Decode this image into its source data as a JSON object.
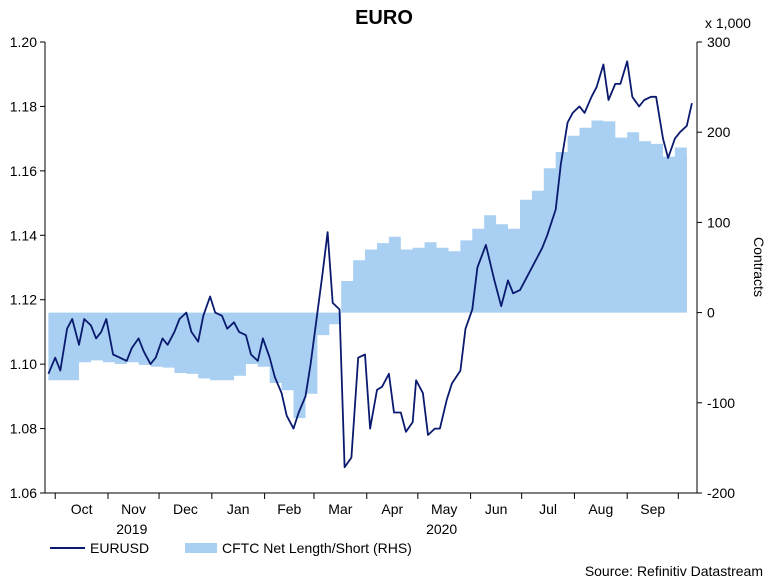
{
  "chart_data": {
    "type": "line",
    "title": "EURO",
    "source": "Source: Refinitiv Datastream",
    "left_axis": {
      "ylim": [
        1.06,
        1.2
      ],
      "ticks": [
        "1.20",
        "1.18",
        "1.16",
        "1.14",
        "1.12",
        "1.10",
        "1.08",
        "1.06"
      ]
    },
    "right_axis": {
      "multiplier": "x 1,000",
      "label": "Contracts",
      "ylim": [
        -200,
        300
      ],
      "ticks": [
        "300",
        "200",
        "100",
        "0",
        "-100",
        "-200"
      ]
    },
    "x_months": [
      "Oct",
      "Nov",
      "Dec",
      "Jan",
      "Feb",
      "Mar",
      "Apr",
      "May",
      "Jun",
      "Jul",
      "Aug",
      "Sep"
    ],
    "x_years": [
      "2019",
      "2020"
    ],
    "legend": [
      "EURUSD",
      "CFTC Net Length/Short (RHS)"
    ],
    "colors": {
      "line": "#0a1a6e",
      "area": "#a9cff2",
      "axis": "#000000"
    },
    "series": [
      {
        "name": "EURUSD",
        "axis": "left",
        "points": [
          [
            "2019-09-27",
            1.097
          ],
          [
            "2019-10-01",
            1.102
          ],
          [
            "2019-10-04",
            1.098
          ],
          [
            "2019-10-08",
            1.111
          ],
          [
            "2019-10-11",
            1.114
          ],
          [
            "2019-10-15",
            1.106
          ],
          [
            "2019-10-18",
            1.114
          ],
          [
            "2019-10-22",
            1.112
          ],
          [
            "2019-10-25",
            1.108
          ],
          [
            "2019-10-28",
            1.11
          ],
          [
            "2019-10-31",
            1.114
          ],
          [
            "2019-11-04",
            1.103
          ],
          [
            "2019-11-08",
            1.102
          ],
          [
            "2019-11-12",
            1.101
          ],
          [
            "2019-11-15",
            1.105
          ],
          [
            "2019-11-19",
            1.108
          ],
          [
            "2019-11-22",
            1.104
          ],
          [
            "2019-11-26",
            1.1
          ],
          [
            "2019-11-29",
            1.102
          ],
          [
            "2019-12-03",
            1.108
          ],
          [
            "2019-12-06",
            1.106
          ],
          [
            "2019-12-10",
            1.11
          ],
          [
            "2019-12-13",
            1.114
          ],
          [
            "2019-12-17",
            1.116
          ],
          [
            "2019-12-20",
            1.11
          ],
          [
            "2019-12-24",
            1.107
          ],
          [
            "2019-12-27",
            1.115
          ],
          [
            "2019-12-31",
            1.121
          ],
          [
            "2020-01-03",
            1.116
          ],
          [
            "2020-01-07",
            1.115
          ],
          [
            "2020-01-10",
            1.111
          ],
          [
            "2020-01-14",
            1.113
          ],
          [
            "2020-01-17",
            1.11
          ],
          [
            "2020-01-21",
            1.109
          ],
          [
            "2020-01-24",
            1.103
          ],
          [
            "2020-01-28",
            1.101
          ],
          [
            "2020-01-31",
            1.108
          ],
          [
            "2020-02-04",
            1.102
          ],
          [
            "2020-02-07",
            1.096
          ],
          [
            "2020-02-11",
            1.091
          ],
          [
            "2020-02-14",
            1.084
          ],
          [
            "2020-02-18",
            1.08
          ],
          [
            "2020-02-21",
            1.085
          ],
          [
            "2020-02-25",
            1.09
          ],
          [
            "2020-02-28",
            1.1
          ],
          [
            "2020-03-03",
            1.116
          ],
          [
            "2020-03-06",
            1.128
          ],
          [
            "2020-03-09",
            1.141
          ],
          [
            "2020-03-12",
            1.119
          ],
          [
            "2020-03-16",
            1.117
          ],
          [
            "2020-03-19",
            1.068
          ],
          [
            "2020-03-23",
            1.071
          ],
          [
            "2020-03-27",
            1.102
          ],
          [
            "2020-03-31",
            1.103
          ],
          [
            "2020-04-03",
            1.08
          ],
          [
            "2020-04-07",
            1.092
          ],
          [
            "2020-04-10",
            1.093
          ],
          [
            "2020-04-14",
            1.097
          ],
          [
            "2020-04-17",
            1.085
          ],
          [
            "2020-04-21",
            1.085
          ],
          [
            "2020-04-24",
            1.079
          ],
          [
            "2020-04-28",
            1.082
          ],
          [
            "2020-04-30",
            1.095
          ],
          [
            "2020-05-04",
            1.091
          ],
          [
            "2020-05-07",
            1.078
          ],
          [
            "2020-05-11",
            1.08
          ],
          [
            "2020-05-14",
            1.08
          ],
          [
            "2020-05-18",
            1.089
          ],
          [
            "2020-05-21",
            1.094
          ],
          [
            "2020-05-26",
            1.098
          ],
          [
            "2020-05-29",
            1.111
          ],
          [
            "2020-06-02",
            1.117
          ],
          [
            "2020-06-05",
            1.13
          ],
          [
            "2020-06-10",
            1.137
          ],
          [
            "2020-06-15",
            1.126
          ],
          [
            "2020-06-19",
            1.118
          ],
          [
            "2020-06-23",
            1.126
          ],
          [
            "2020-06-26",
            1.122
          ],
          [
            "2020-06-30",
            1.123
          ],
          [
            "2020-07-03",
            1.126
          ],
          [
            "2020-07-08",
            1.131
          ],
          [
            "2020-07-13",
            1.136
          ],
          [
            "2020-07-16",
            1.14
          ],
          [
            "2020-07-21",
            1.148
          ],
          [
            "2020-07-24",
            1.162
          ],
          [
            "2020-07-28",
            1.175
          ],
          [
            "2020-07-31",
            1.178
          ],
          [
            "2020-08-04",
            1.18
          ],
          [
            "2020-08-07",
            1.178
          ],
          [
            "2020-08-11",
            1.183
          ],
          [
            "2020-08-14",
            1.186
          ],
          [
            "2020-08-18",
            1.193
          ],
          [
            "2020-08-21",
            1.182
          ],
          [
            "2020-08-25",
            1.187
          ],
          [
            "2020-08-28",
            1.187
          ],
          [
            "2020-09-01",
            1.194
          ],
          [
            "2020-09-04",
            1.183
          ],
          [
            "2020-09-08",
            1.18
          ],
          [
            "2020-09-11",
            1.182
          ],
          [
            "2020-09-15",
            1.183
          ],
          [
            "2020-09-18",
            1.183
          ],
          [
            "2020-09-22",
            1.17
          ],
          [
            "2020-09-25",
            1.164
          ],
          [
            "2020-09-29",
            1.17
          ],
          [
            "2020-10-02",
            1.172
          ],
          [
            "2020-10-06",
            1.174
          ],
          [
            "2020-10-09",
            1.181
          ]
        ]
      },
      {
        "name": "CFTC Net Length/Short (RHS)",
        "axis": "right",
        "unit": "thousand contracts",
        "points": [
          [
            "2019-09-27",
            -75
          ],
          [
            "2019-10-08",
            -75
          ],
          [
            "2019-10-15",
            -55
          ],
          [
            "2019-10-22",
            -53
          ],
          [
            "2019-10-29",
            -55
          ],
          [
            "2019-11-05",
            -57
          ],
          [
            "2019-11-12",
            -55
          ],
          [
            "2019-11-19",
            -58
          ],
          [
            "2019-11-26",
            -60
          ],
          [
            "2019-12-03",
            -61
          ],
          [
            "2019-12-10",
            -67
          ],
          [
            "2019-12-17",
            -68
          ],
          [
            "2019-12-24",
            -73
          ],
          [
            "2019-12-31",
            -75
          ],
          [
            "2020-01-07",
            -75
          ],
          [
            "2020-01-14",
            -70
          ],
          [
            "2020-01-21",
            -57
          ],
          [
            "2020-01-28",
            -60
          ],
          [
            "2020-02-04",
            -78
          ],
          [
            "2020-02-11",
            -86
          ],
          [
            "2020-02-18",
            -117
          ],
          [
            "2020-02-25",
            -90
          ],
          [
            "2020-03-03",
            -25
          ],
          [
            "2020-03-10",
            -13
          ],
          [
            "2020-03-17",
            35
          ],
          [
            "2020-03-24",
            58
          ],
          [
            "2020-03-31",
            70
          ],
          [
            "2020-04-07",
            77
          ],
          [
            "2020-04-14",
            84
          ],
          [
            "2020-04-21",
            70
          ],
          [
            "2020-04-28",
            72
          ],
          [
            "2020-05-05",
            78
          ],
          [
            "2020-05-12",
            72
          ],
          [
            "2020-05-19",
            68
          ],
          [
            "2020-05-26",
            80
          ],
          [
            "2020-06-02",
            93
          ],
          [
            "2020-06-09",
            108
          ],
          [
            "2020-06-16",
            98
          ],
          [
            "2020-06-23",
            93
          ],
          [
            "2020-06-30",
            125
          ],
          [
            "2020-07-07",
            135
          ],
          [
            "2020-07-14",
            160
          ],
          [
            "2020-07-21",
            178
          ],
          [
            "2020-07-28",
            196
          ],
          [
            "2020-08-04",
            205
          ],
          [
            "2020-08-11",
            213
          ],
          [
            "2020-08-18",
            212
          ],
          [
            "2020-08-25",
            194
          ],
          [
            "2020-09-01",
            200
          ],
          [
            "2020-09-08",
            190
          ],
          [
            "2020-09-15",
            187
          ],
          [
            "2020-09-22",
            173
          ],
          [
            "2020-09-29",
            183
          ],
          [
            "2020-10-06",
            175
          ]
        ]
      }
    ]
  }
}
